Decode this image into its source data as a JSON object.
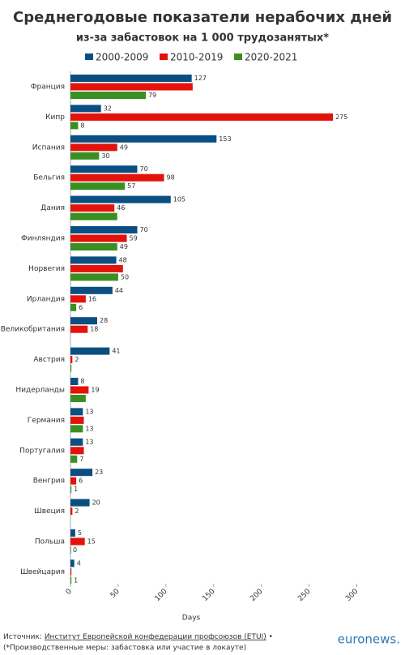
{
  "chart_data": {
    "type": "bar",
    "orientation": "horizontal",
    "title": "Среднегодовые показатели нерабочих дней",
    "subtitle": "из-за забастовок на 1 000 трудозанятых*",
    "categories": [
      "Франция",
      "Кипр",
      "Испания",
      "Бельгия",
      "Дания",
      "Финляндия",
      "Норвегия",
      "Ирландия",
      "Великобритания",
      "Австрия",
      "Нидерланды",
      "Германия",
      "Португалия",
      "Венгрия",
      "Швеция",
      "Польша",
      "Швейцария"
    ],
    "series": [
      {
        "name": "2000-2009",
        "color": "#0b4f82",
        "values": [
          127,
          32,
          153,
          70,
          105,
          70,
          48,
          44,
          28,
          41,
          8,
          13,
          13,
          23,
          20,
          5,
          4
        ],
        "value_labels": [
          127,
          32,
          153,
          70,
          105,
          70,
          48,
          44,
          28,
          41,
          8,
          13,
          13,
          23,
          20,
          5,
          4
        ]
      },
      {
        "name": "2010-2019",
        "color": "#e3120b",
        "values": [
          128,
          275,
          49,
          98,
          46,
          59,
          55,
          16,
          18,
          2,
          19,
          14,
          14,
          6,
          2,
          15,
          1
        ],
        "value_labels": [
          null,
          275,
          49,
          98,
          46,
          59,
          null,
          16,
          18,
          2,
          19,
          null,
          null,
          6,
          2,
          15,
          null
        ]
      },
      {
        "name": "2020-2021",
        "color": "#3a8f23",
        "values": [
          79,
          8,
          30,
          57,
          49,
          49,
          50,
          6,
          null,
          1,
          16,
          13,
          7,
          1,
          null,
          0,
          1
        ],
        "value_labels": [
          79,
          8,
          30,
          57,
          null,
          49,
          50,
          6,
          null,
          null,
          null,
          13,
          7,
          1,
          null,
          0,
          1
        ]
      }
    ],
    "xlim": [
      0,
      325
    ],
    "xticks": [
      0,
      50,
      100,
      150,
      200,
      250,
      300
    ],
    "xlabel": "Days",
    "source_prefix": "Источник:",
    "source_name": "Институт Европейской конфедерации профсоюзов (ETUI)",
    "source_suffix": "•",
    "footnote": "(*Производственные меры: забастовка или участие в локауте)",
    "logo": "euronews."
  }
}
